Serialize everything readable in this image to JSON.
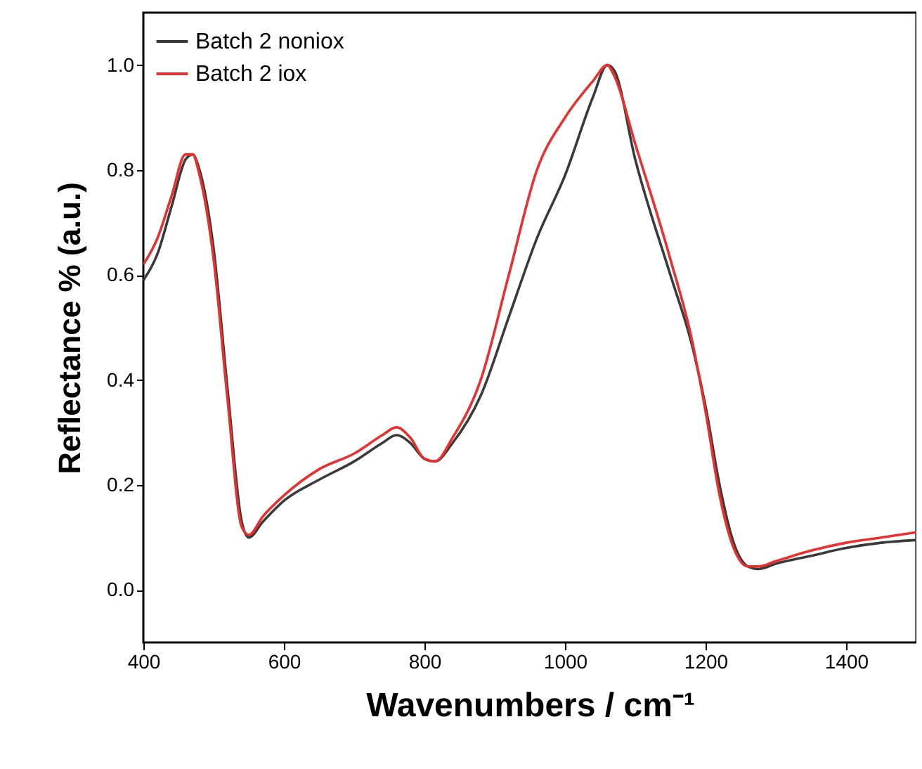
{
  "chart_data": {
    "type": "line",
    "xlabel": "Wavenumbers / cm⁻¹",
    "ylabel": "Reflectance % (a.u.)",
    "xlim": [
      400,
      1500
    ],
    "ylim": [
      -0.1,
      1.1
    ],
    "xticks": [
      400,
      600,
      800,
      1000,
      1200,
      1400
    ],
    "yticks": [
      {
        "value": 0,
        "label": "0.0"
      },
      0.2,
      0.4,
      0.6,
      0.8,
      {
        "value": 1,
        "label": "1.0"
      }
    ],
    "grid": false,
    "legend": "top left",
    "marker": "none",
    "line_style": "solid",
    "x": [
      400,
      420,
      440,
      460,
      470,
      480,
      500,
      520,
      540,
      550,
      570,
      600,
      650,
      700,
      740,
      760,
      780,
      800,
      815,
      840,
      880,
      920,
      960,
      1000,
      1040,
      1060,
      1070,
      1100,
      1150,
      1180,
      1200,
      1220,
      1240,
      1260,
      1275,
      1300,
      1350,
      1400,
      1450,
      1500
    ],
    "series": [
      {
        "name": "Batch 2 noniox",
        "color": "#3a3a3a",
        "values": [
          0.59,
          0.64,
          0.73,
          0.82,
          0.83,
          0.8,
          0.65,
          0.38,
          0.13,
          0.1,
          0.13,
          0.17,
          0.21,
          0.245,
          0.28,
          0.295,
          0.28,
          0.25,
          0.245,
          0.28,
          0.37,
          0.52,
          0.67,
          0.79,
          0.94,
          1.0,
          0.99,
          0.82,
          0.6,
          0.47,
          0.35,
          0.2,
          0.09,
          0.045,
          0.04,
          0.05,
          0.065,
          0.08,
          0.09,
          0.095
        ]
      },
      {
        "name": "Batch 2 iox",
        "color": "#e8302f",
        "values": [
          0.62,
          0.67,
          0.75,
          0.83,
          0.83,
          0.79,
          0.63,
          0.36,
          0.12,
          0.105,
          0.14,
          0.18,
          0.23,
          0.26,
          0.295,
          0.31,
          0.29,
          0.25,
          0.245,
          0.29,
          0.4,
          0.6,
          0.8,
          0.9,
          0.97,
          1.0,
          0.98,
          0.85,
          0.63,
          0.48,
          0.34,
          0.18,
          0.08,
          0.045,
          0.045,
          0.055,
          0.075,
          0.09,
          0.1,
          0.11
        ]
      }
    ]
  }
}
